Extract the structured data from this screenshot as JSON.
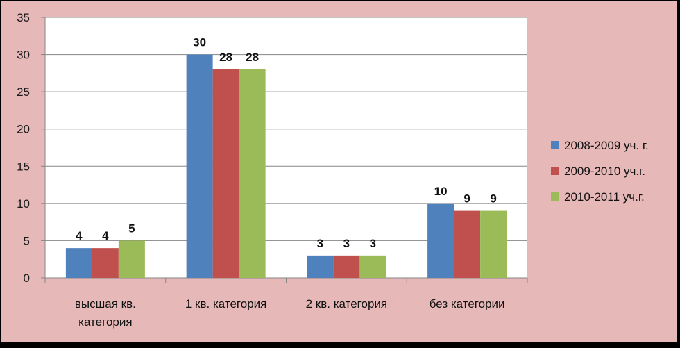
{
  "chart_data": {
    "type": "bar",
    "categories": [
      [
        "высшая кв.",
        "категория"
      ],
      [
        "1 кв. категория"
      ],
      [
        "2 кв. категория"
      ],
      [
        "без категории"
      ]
    ],
    "series": [
      {
        "name": "2008-2009 уч. г.",
        "values": [
          4,
          30,
          3,
          10
        ],
        "color": "#4f81bd"
      },
      {
        "name": "2009-2010 уч.г.",
        "values": [
          4,
          28,
          3,
          9
        ],
        "color": "#c0504d"
      },
      {
        "name": "2010-2011 уч.г.",
        "values": [
          5,
          28,
          3,
          9
        ],
        "color": "#9bbb59"
      }
    ],
    "ylim": [
      0,
      35
    ],
    "yticks": [
      0,
      5,
      10,
      15,
      20,
      25,
      30,
      35
    ],
    "grid": true,
    "legend": "right",
    "colors": {
      "chart_background": "#e6b8b7",
      "plot_background": "#ffffff",
      "gridline": "#868686",
      "axis": "#868686"
    }
  }
}
